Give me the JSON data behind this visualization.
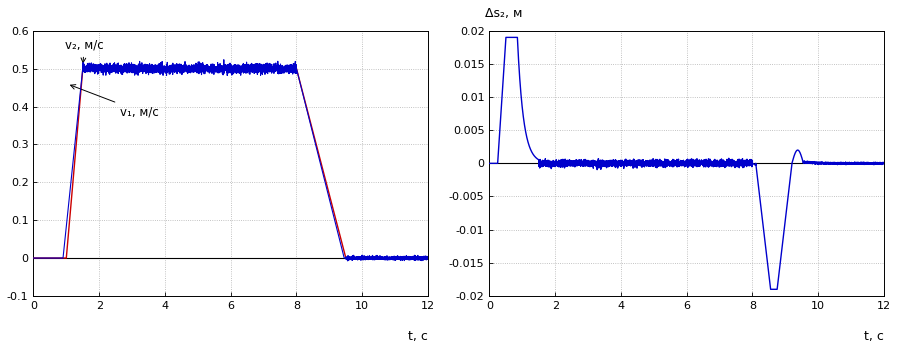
{
  "left_ylabel": "v₂, м/с",
  "left_ylabel2": "v₁, м/с",
  "left_xlabel": "t, с",
  "left_xlim": [
    0,
    12
  ],
  "left_ylim": [
    -0.1,
    0.6
  ],
  "left_yticks": [
    -0.1,
    0.0,
    0.1,
    0.2,
    0.3,
    0.4,
    0.5,
    0.6
  ],
  "left_xticks": [
    0,
    2,
    4,
    6,
    8,
    10,
    12
  ],
  "right_ylabel": "Δs₂, м",
  "right_xlabel": "t, с",
  "right_xlim": [
    0,
    12
  ],
  "right_ylim": [
    -0.02,
    0.02
  ],
  "right_yticks": [
    -0.02,
    -0.015,
    -0.01,
    -0.005,
    0.0,
    0.005,
    0.01,
    0.015,
    0.02
  ],
  "right_xticks": [
    0,
    2,
    4,
    6,
    8,
    10,
    12
  ],
  "v1_color": "#0000cc",
  "v2_color": "#cc0000",
  "ds2_color": "#0000cc",
  "grid_color": "#b0b0b0",
  "bg_color": "#ffffff"
}
